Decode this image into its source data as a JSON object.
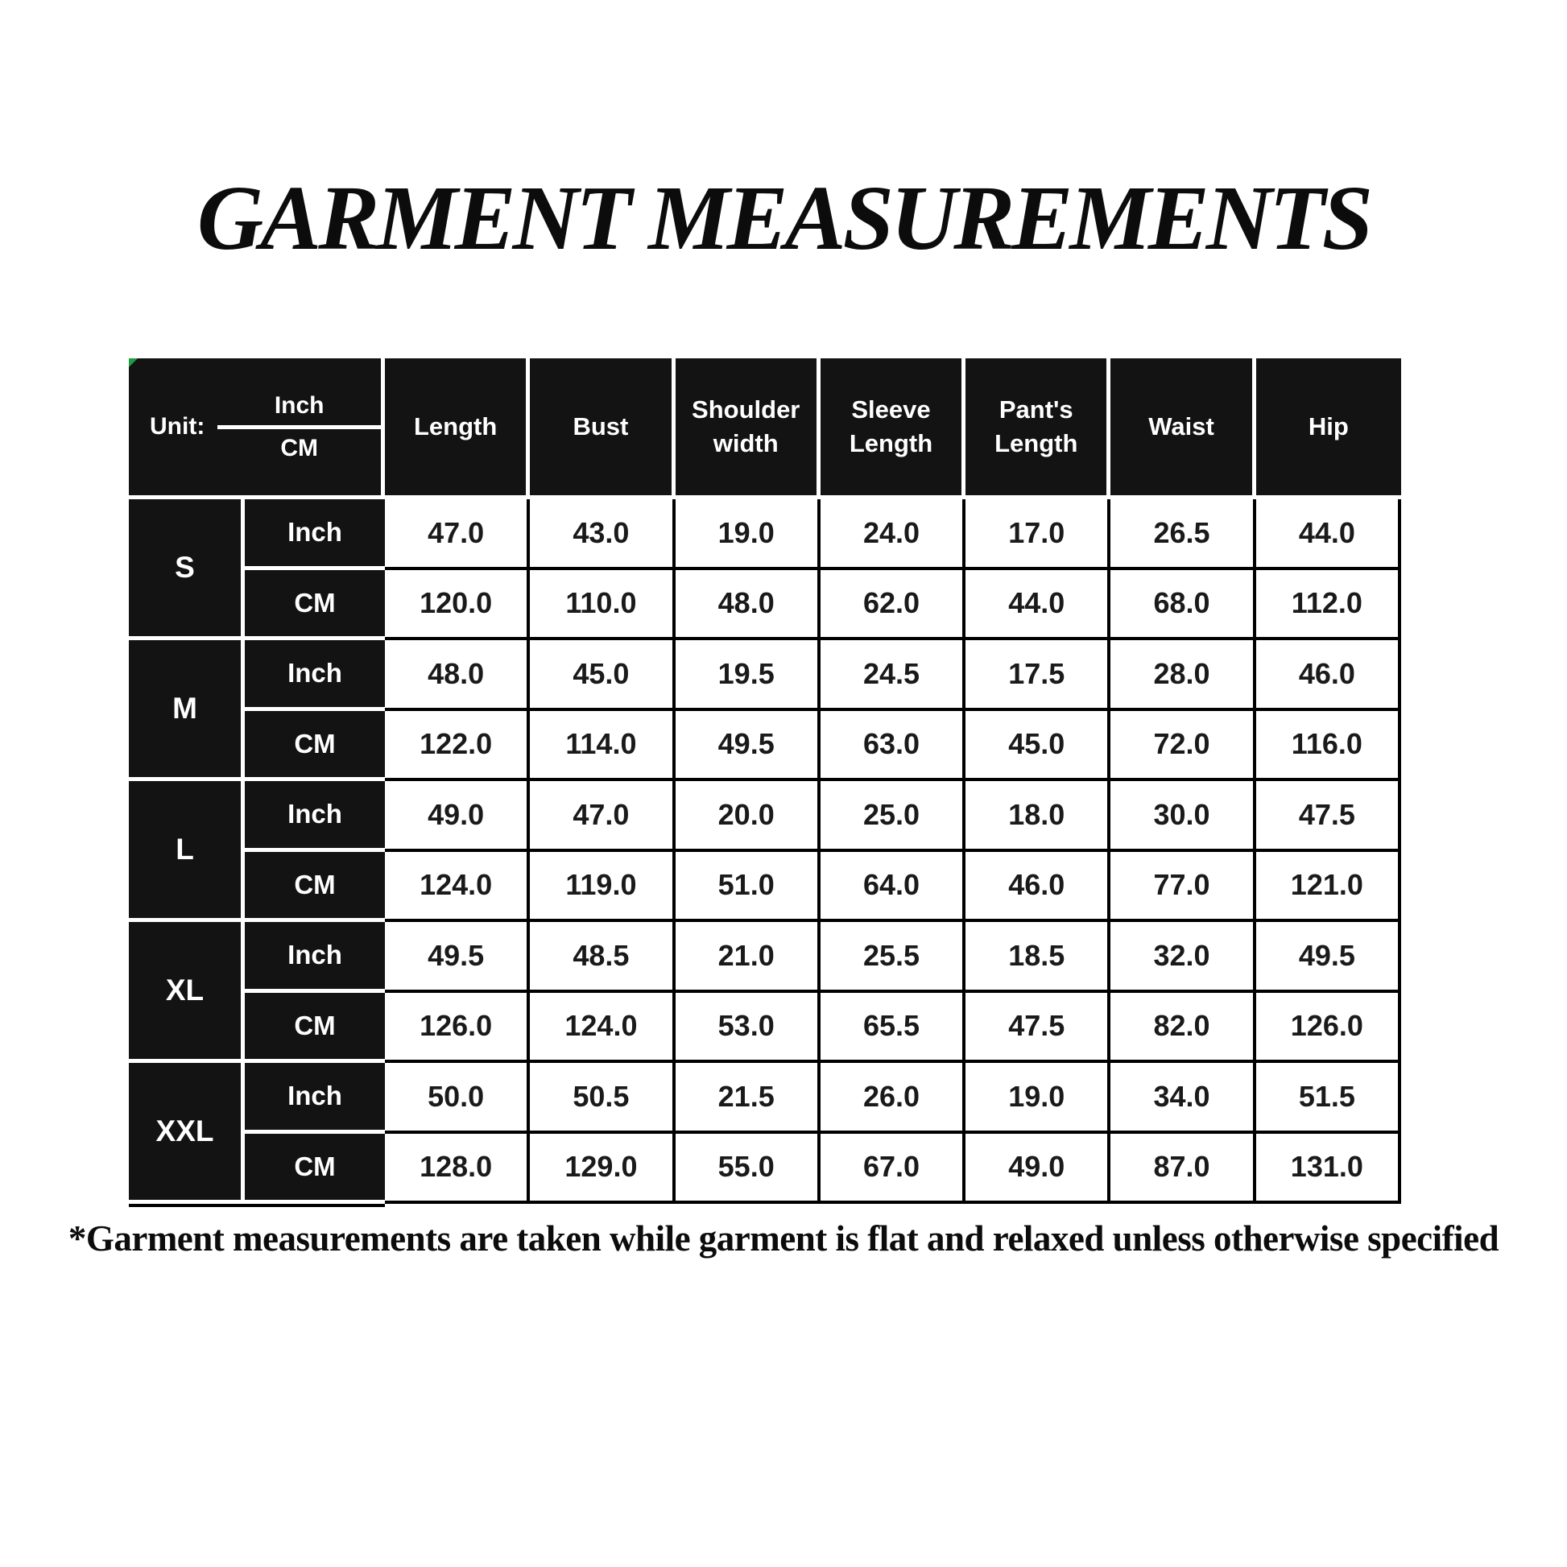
{
  "title": "GARMENT MEASUREMENTS",
  "footnote": "*Garment measurements are taken while garment is flat and relaxed unless otherwise specified",
  "table": {
    "unit_label": "Unit:",
    "unit_fraction_top": "Inch",
    "unit_fraction_bottom": "CM",
    "column_headers": [
      "Length",
      "Bust",
      "Shoulder width",
      "Sleeve Length",
      "Pant's Length",
      "Waist",
      "Hip"
    ],
    "sizes": [
      {
        "label": "S",
        "rows": [
          {
            "unit": "Inch",
            "values": [
              "47.0",
              "43.0",
              "19.0",
              "24.0",
              "17.0",
              "26.5",
              "44.0"
            ]
          },
          {
            "unit": "CM",
            "values": [
              "120.0",
              "110.0",
              "48.0",
              "62.0",
              "44.0",
              "68.0",
              "112.0"
            ]
          }
        ]
      },
      {
        "label": "M",
        "rows": [
          {
            "unit": "Inch",
            "values": [
              "48.0",
              "45.0",
              "19.5",
              "24.5",
              "17.5",
              "28.0",
              "46.0"
            ]
          },
          {
            "unit": "CM",
            "values": [
              "122.0",
              "114.0",
              "49.5",
              "63.0",
              "45.0",
              "72.0",
              "116.0"
            ]
          }
        ]
      },
      {
        "label": "L",
        "rows": [
          {
            "unit": "Inch",
            "values": [
              "49.0",
              "47.0",
              "20.0",
              "25.0",
              "18.0",
              "30.0",
              "47.5"
            ]
          },
          {
            "unit": "CM",
            "values": [
              "124.0",
              "119.0",
              "51.0",
              "64.0",
              "46.0",
              "77.0",
              "121.0"
            ]
          }
        ]
      },
      {
        "label": "XL",
        "rows": [
          {
            "unit": "Inch",
            "values": [
              "49.5",
              "48.5",
              "21.0",
              "25.5",
              "18.5",
              "32.0",
              "49.5"
            ]
          },
          {
            "unit": "CM",
            "values": [
              "126.0",
              "124.0",
              "53.0",
              "65.5",
              "47.5",
              "82.0",
              "126.0"
            ]
          }
        ]
      },
      {
        "label": "XXL",
        "rows": [
          {
            "unit": "Inch",
            "values": [
              "50.0",
              "50.5",
              "21.5",
              "26.0",
              "19.0",
              "34.0",
              "51.5"
            ]
          },
          {
            "unit": "CM",
            "values": [
              "128.0",
              "129.0",
              "55.0",
              "67.0",
              "49.0",
              "87.0",
              "131.0"
            ]
          }
        ]
      }
    ]
  },
  "colors": {
    "cell_black": "#131313",
    "grid_white": "#ffffff",
    "grid_black": "#000000",
    "corner_marker_green": "#1f9d44"
  }
}
